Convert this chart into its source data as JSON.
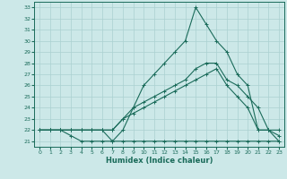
{
  "xlabel": "Humidex (Indice chaleur)",
  "bg_color": "#cce8e8",
  "line_color": "#1a6b5a",
  "grid_color": "#aad0d0",
  "xlim": [
    -0.5,
    23.5
  ],
  "ylim": [
    20.5,
    33.5
  ],
  "yticks": [
    21,
    22,
    23,
    24,
    25,
    26,
    27,
    28,
    29,
    30,
    31,
    32,
    33
  ],
  "xticks": [
    0,
    1,
    2,
    3,
    4,
    5,
    6,
    7,
    8,
    9,
    10,
    11,
    12,
    13,
    14,
    15,
    16,
    17,
    18,
    19,
    20,
    21,
    22,
    23
  ],
  "lines": [
    {
      "x": [
        0,
        1,
        2,
        3,
        4,
        5,
        6,
        7,
        8,
        9,
        10,
        11,
        12,
        13,
        14,
        15,
        16,
        17,
        18,
        19,
        20,
        21,
        22,
        23
      ],
      "y": [
        22,
        22,
        22,
        21.5,
        21,
        21,
        21,
        21,
        21,
        21,
        21,
        21,
        21,
        21,
        21,
        21,
        21,
        21,
        21,
        21,
        21,
        21,
        21,
        21
      ]
    },
    {
      "x": [
        0,
        1,
        2,
        3,
        4,
        5,
        6,
        7,
        8,
        9,
        10,
        11,
        12,
        13,
        14,
        15,
        16,
        17,
        18,
        19,
        20,
        21,
        22,
        23
      ],
      "y": [
        22,
        22,
        22,
        22,
        22,
        22,
        22,
        22,
        23,
        23.5,
        24,
        24.5,
        25,
        25.5,
        26,
        26.5,
        27,
        27.5,
        26,
        25,
        24,
        22,
        22,
        22
      ]
    },
    {
      "x": [
        0,
        1,
        2,
        3,
        4,
        5,
        6,
        7,
        8,
        9,
        10,
        11,
        12,
        13,
        14,
        15,
        16,
        17,
        18,
        19,
        20,
        21,
        22,
        23
      ],
      "y": [
        22,
        22,
        22,
        22,
        22,
        22,
        22,
        22,
        23,
        24,
        24.5,
        25,
        25.5,
        26,
        26.5,
        27.5,
        28,
        28,
        26.5,
        26,
        25,
        24,
        22,
        21.5
      ]
    },
    {
      "x": [
        0,
        1,
        2,
        3,
        4,
        5,
        6,
        7,
        8,
        9,
        10,
        11,
        12,
        13,
        14,
        15,
        16,
        17,
        18,
        19,
        20,
        21,
        22,
        23
      ],
      "y": [
        22,
        22,
        22,
        22,
        22,
        22,
        22,
        21,
        22,
        24,
        26,
        27,
        28,
        29,
        30,
        33,
        31.5,
        30,
        29,
        27,
        26,
        22,
        22,
        21
      ]
    }
  ]
}
